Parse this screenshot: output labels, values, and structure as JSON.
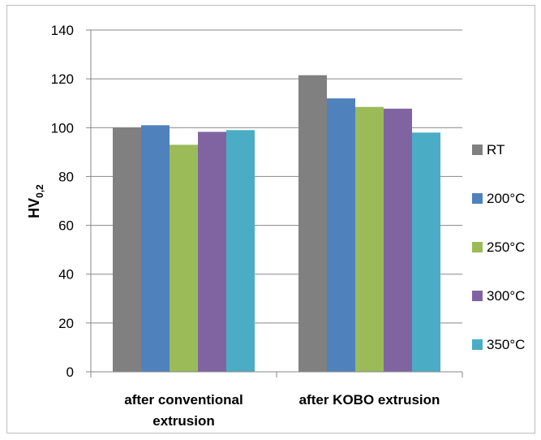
{
  "chart_data": {
    "type": "bar",
    "title": "",
    "xlabel": "",
    "ylabel": {
      "main": "HV",
      "sub": "0,2"
    },
    "ylim": [
      0,
      140
    ],
    "yticks": [
      0,
      20,
      40,
      60,
      80,
      100,
      120,
      140
    ],
    "categories": [
      [
        "after conventional",
        "extrusion"
      ],
      [
        "after KOBO extrusion"
      ]
    ],
    "series": [
      {
        "name": "RT",
        "color": "#808080",
        "values": [
          100,
          121.5
        ]
      },
      {
        "name": "200°C",
        "color": "#4f81bd",
        "values": [
          101,
          112
        ]
      },
      {
        "name": "250°C",
        "color": "#9bbb59",
        "values": [
          93,
          108.5
        ]
      },
      {
        "name": "300°C",
        "color": "#8064a2",
        "values": [
          98.3,
          107.8
        ]
      },
      {
        "name": "350°C",
        "color": "#4bacc6",
        "values": [
          99,
          98
        ]
      }
    ],
    "legend_position": "right",
    "grid": true
  }
}
